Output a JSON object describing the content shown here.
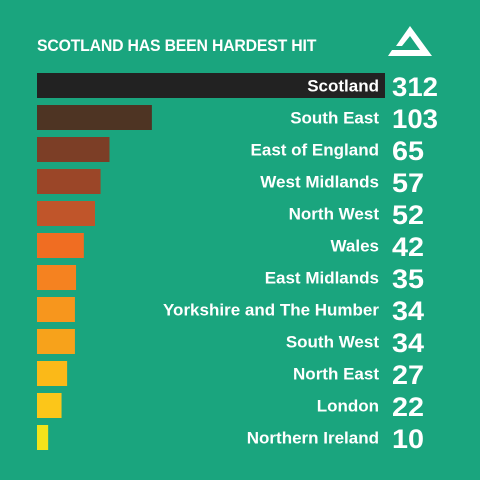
{
  "chart_data": {
    "type": "bar",
    "orientation": "horizontal",
    "title": "SCOTLAND HAS BEEN HARDEST HIT",
    "categories": [
      "Scotland",
      "South East",
      "East of England",
      "West Midlands",
      "North West",
      "Wales",
      "East Midlands",
      "Yorkshire and The Humber",
      "South West",
      "North East",
      "London",
      "Northern Ireland"
    ],
    "values": [
      312,
      103,
      65,
      57,
      52,
      42,
      35,
      34,
      34,
      27,
      22,
      10
    ],
    "bar_colors": [
      "#222222",
      "#4e3423",
      "#7c3e26",
      "#9b4628",
      "#c0552a",
      "#f06d22",
      "#f58220",
      "#f7961d",
      "#f7a21b",
      "#fbb918",
      "#fcc619",
      "#f2e31a"
    ],
    "xlabel": "",
    "ylabel": "",
    "xlim": [
      0,
      312
    ],
    "grid": false,
    "legend": "none"
  },
  "logo": {
    "name": "triangle-logo-icon"
  },
  "colors": {
    "background": "#1aa57e",
    "text": "#ffffff"
  }
}
